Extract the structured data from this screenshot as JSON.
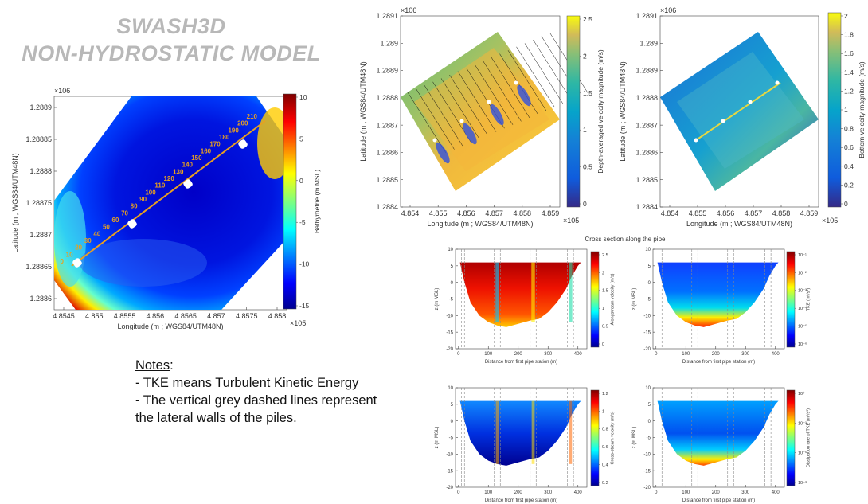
{
  "title": {
    "line1": "SWASH3D",
    "line2": "NON-HYDROSTATIC MODEL"
  },
  "notes": {
    "heading": "Notes",
    "items": [
      "- TKE means Turbulent Kinetic Energy",
      "- The vertical grey dashed lines represent",
      "the lateral walls of  the piles."
    ]
  },
  "cross_section_title": "Cross section along the pipe",
  "chart_data": [
    {
      "id": "bathymetry",
      "type": "heatmap",
      "xlabel": "Longitude (m ; WGS84/UTM48N)",
      "ylabel": "Latitude (m ; WGS84/UTM48N)",
      "x_exponent": "×10^5",
      "y_exponent": "×10^6",
      "xticks": [
        "4.8545",
        "4.855",
        "4.8555",
        "4.856",
        "4.8565",
        "4.857",
        "4.8575",
        "4.858"
      ],
      "yticks": [
        "1.2889",
        "1.28885",
        "1.2888",
        "1.28875",
        "1.2887",
        "1.28865",
        "1.2886"
      ],
      "colorbar_label": "Bathymétrie (m MSL)",
      "colorbar_ticks": [
        "10",
        "5",
        "0",
        "-5",
        "-10",
        "-15"
      ],
      "clim": [
        -17,
        10
      ],
      "pipe_station_labels": [
        "0",
        "10",
        "20",
        "30",
        "40",
        "50",
        "60",
        "70",
        "80",
        "90",
        "100",
        "110",
        "120",
        "130",
        "140",
        "150",
        "160",
        "170",
        "180",
        "190",
        "200",
        "210"
      ]
    },
    {
      "id": "depth-avg-velocity",
      "type": "heatmap",
      "xlabel": "Longitude (m ; WGS84/UTM48N)",
      "ylabel": "Latitude (m ; WGS84/UTM48N)",
      "x_exponent": "×10^5",
      "y_exponent": "×10^6",
      "xticks": [
        "4.854",
        "4.855",
        "4.856",
        "4.857",
        "4.858",
        "4.859"
      ],
      "yticks": [
        "1.2891",
        "1.289",
        "1.2889",
        "1.2888",
        "1.2887",
        "1.2886",
        "1.2885",
        "1.2884"
      ],
      "colorbar_label": "Depth-averaged velocity magnitude (m/s)",
      "colorbar_ticks": [
        "2.5",
        "2",
        "1.5",
        "1",
        "0.5",
        "0"
      ],
      "clim": [
        0,
        2.8
      ]
    },
    {
      "id": "bottom-velocity",
      "type": "heatmap",
      "xlabel": "Longitude (m ; WGS84/UTM48N)",
      "ylabel": "Latitude (m ; WGS84/UTM48N)",
      "x_exponent": "×10^5",
      "y_exponent": "×10^6",
      "xticks": [
        "4.854",
        "4.855",
        "4.856",
        "4.857",
        "4.858",
        "4.859"
      ],
      "yticks": [
        "1.2891",
        "1.289",
        "1.2889",
        "1.2888",
        "1.2887",
        "1.2886",
        "1.2885",
        "1.2884"
      ],
      "colorbar_label": "Bottom velocity magnitude (m/s)",
      "colorbar_ticks": [
        "2",
        "1.8",
        "1.6",
        "1.4",
        "1.2",
        "1",
        "0.8",
        "0.6",
        "0.4",
        "0.2",
        "0"
      ],
      "clim": [
        0,
        2.2
      ]
    },
    {
      "id": "alongstream",
      "type": "heatmap",
      "xlabel": "Distance from first pipe station (m)",
      "ylabel": "z (m MSL)",
      "xticks": [
        "0",
        "100",
        "200",
        "300",
        "400"
      ],
      "yticks": [
        "10",
        "5",
        "0",
        "-5",
        "-10",
        "-15",
        "-20"
      ],
      "ylim": [
        -20,
        10
      ],
      "xlim": [
        -10,
        430
      ],
      "colorbar_label": "Alongstream velocity (m/s)",
      "colorbar_ticks": [
        "2.5",
        "2",
        "1.5",
        "1",
        "0.5",
        "0"
      ],
      "clim": [
        0,
        2.6
      ]
    },
    {
      "id": "tke",
      "type": "heatmap",
      "xlabel": "Distance from first pipe station (m)",
      "ylabel": "z (m MSL)",
      "xticks": [
        "0",
        "100",
        "200",
        "300",
        "400"
      ],
      "yticks": [
        "10",
        "5",
        "0",
        "-5",
        "-10",
        "-15",
        "-20"
      ],
      "ylim": [
        -20,
        10
      ],
      "xlim": [
        -10,
        430
      ],
      "colorbar_label": "TKE (m²/s²)",
      "colorbar_ticks": [
        "10⁻¹",
        "10⁻²",
        "10⁻³",
        "10⁻⁴",
        "10⁻⁵",
        "10⁻⁶"
      ],
      "log_scale": true
    },
    {
      "id": "cross-stream",
      "type": "heatmap",
      "xlabel": "Distance from first pipe station (m)",
      "ylabel": "z (m MSL)",
      "xticks": [
        "0",
        "100",
        "200",
        "300",
        "400"
      ],
      "yticks": [
        "10",
        "5",
        "0",
        "-5",
        "-10",
        "-15",
        "-20"
      ],
      "ylim": [
        -20,
        10
      ],
      "xlim": [
        -10,
        430
      ],
      "colorbar_label": "Cross-stream velocity (m/s)",
      "colorbar_ticks": [
        "1.2",
        "1",
        "0.8",
        "0.6",
        "0.4",
        "0.2"
      ],
      "clim": [
        0.1,
        1.3
      ]
    },
    {
      "id": "dissipation",
      "type": "heatmap",
      "xlabel": "Distance from first pipe station (m)",
      "ylabel": "z (m MSL)",
      "xticks": [
        "0",
        "100",
        "200",
        "300",
        "400"
      ],
      "yticks": [
        "10",
        "5",
        "0",
        "-5",
        "-10",
        "-15",
        "-20"
      ],
      "ylim": [
        -20,
        10
      ],
      "xlim": [
        -10,
        430
      ],
      "colorbar_label": "Dissipation rate of TKE (m²/s³)",
      "colorbar_ticks": [
        "10⁰",
        "10⁻³",
        "10⁻⁶",
        "10⁻⁹"
      ],
      "log_scale": true
    }
  ],
  "pile_walls_x": [
    [
      10,
      20
    ],
    [
      120,
      140
    ],
    [
      240,
      260
    ],
    [
      365,
      385
    ]
  ]
}
